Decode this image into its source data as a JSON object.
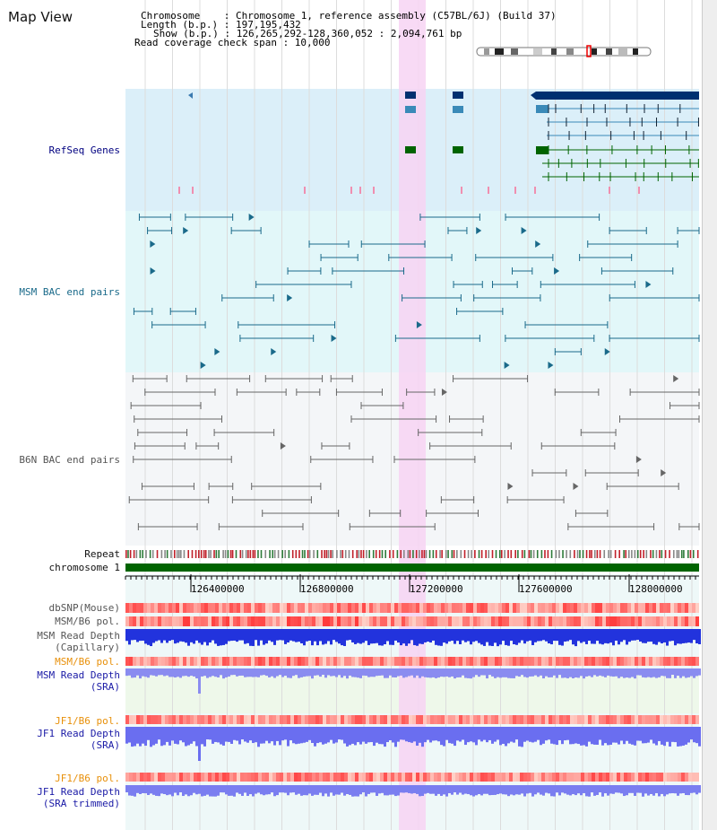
{
  "title": "Map View",
  "header": {
    "chromosome": "Chromosome    : Chromosome 1, reference assembly (C57BL/6J) (Build 37)",
    "length": "Length (b.p.) : 197,195,432",
    "show": "Show (b.p.) : 126,265,292-128,360,052 : 2,094,761 bp",
    "span": "Read coverage check span : 10,000"
  },
  "tracks": {
    "refseq": "RefSeq Genes",
    "msm_bac": "MSM BAC end pairs",
    "b6n_bac": "B6N BAC end pairs",
    "repeat": "Repeat",
    "chrom": "chromosome 1",
    "dbsnp": "dbSNP(Mouse)",
    "msm_b6_pol": "MSM/B6 pol.",
    "msm_rd_cap": "MSM Read Depth\n(Capillary)",
    "msm_b6_pol2": "MSM/B6 pol.",
    "msm_rd_sra": "MSM Read Depth\n(SRA)",
    "jf1_pol": "JF1/B6 pol.",
    "jf1_rd_sra": "JF1 Read Depth\n(SRA)",
    "jf1_pol2": "JF1/B6 pol.",
    "jf1_rd_trim": "JF1 Read Depth\n(SRA trimmed)"
  },
  "axis_ticks": [
    "126400000",
    "126800000",
    "127200000",
    "127600000",
    "128000000"
  ],
  "colors": {
    "refseq_bg": "#dbeff9",
    "msm_bg": "#e2f7f9",
    "b6n_bg": "#f4f6f8",
    "highlight": "#f7d4f3",
    "chrom": "#006400"
  }
}
